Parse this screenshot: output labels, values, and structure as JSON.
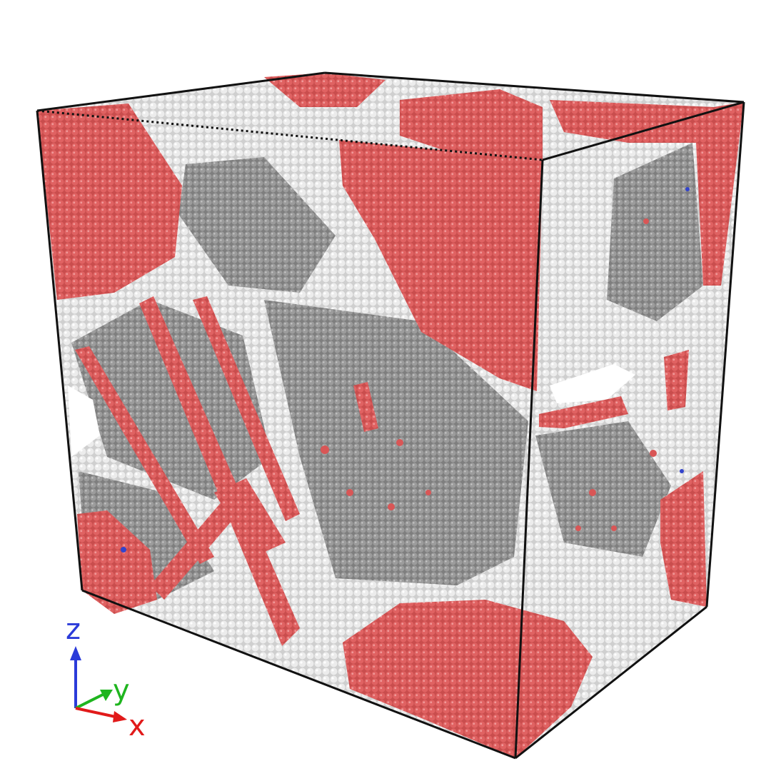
{
  "image": {
    "subject": "atomistic-nanocrystalline-cube",
    "colors": {
      "background": "#ffffff",
      "grain_red": "#dc5b5b",
      "grain_red_dark": "#b84444",
      "grain_boundary_white": "#e9e9e9",
      "boundary_gray": "#a8a8a8",
      "interior_gray": "#8f8f8f",
      "box_edge": "#111111",
      "defect_blue": "#3344cc"
    }
  },
  "axis_triad": {
    "z_label": "z",
    "y_label": "y",
    "x_label": "x",
    "z_color": "#2b3bd9",
    "y_color": "#1fb51f",
    "x_color": "#e11a1a"
  }
}
